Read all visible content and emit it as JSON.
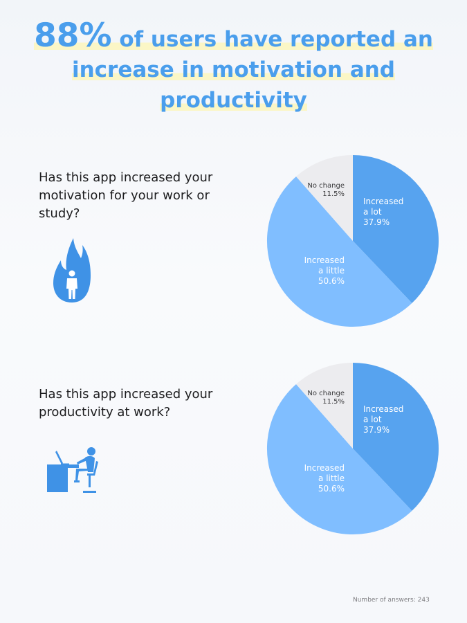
{
  "headline": {
    "percent": "88%",
    "line1_rest": " of users have reported an",
    "line2": "increase in motivation and",
    "line3": "productivity"
  },
  "questions": [
    {
      "text": "Has this app increased your motivation for your work or study?",
      "icon": "fire-person-icon"
    },
    {
      "text": "Has this app increased your productivity at work?",
      "icon": "person-at-desk-icon"
    }
  ],
  "chart_data": [
    {
      "type": "pie",
      "slices": [
        {
          "label": [
            "Increased",
            "a lot"
          ],
          "value": 37.9,
          "value_label": "37.9%",
          "color": "#57a3ef"
        },
        {
          "label": [
            "Increased",
            "a little"
          ],
          "value": 50.6,
          "value_label": "50.6%",
          "color": "#80beff"
        },
        {
          "label": [
            "No change"
          ],
          "value": 11.5,
          "value_label": "11.5%",
          "color": "#ececef"
        }
      ]
    },
    {
      "type": "pie",
      "slices": [
        {
          "label": [
            "Increased",
            "a lot"
          ],
          "value": 37.9,
          "value_label": "37.9%",
          "color": "#57a3ef"
        },
        {
          "label": [
            "Increased",
            "a little"
          ],
          "value": 50.6,
          "value_label": "50.6%",
          "color": "#80beff"
        },
        {
          "label": [
            "No change"
          ],
          "value": 11.5,
          "value_label": "11.5%",
          "color": "#ececef"
        }
      ]
    }
  ],
  "footnote": "Number of answers: 243",
  "colors": {
    "accent": "#4a9eec",
    "icon": "#3f92e6",
    "highlight": "#fbf6c6"
  }
}
